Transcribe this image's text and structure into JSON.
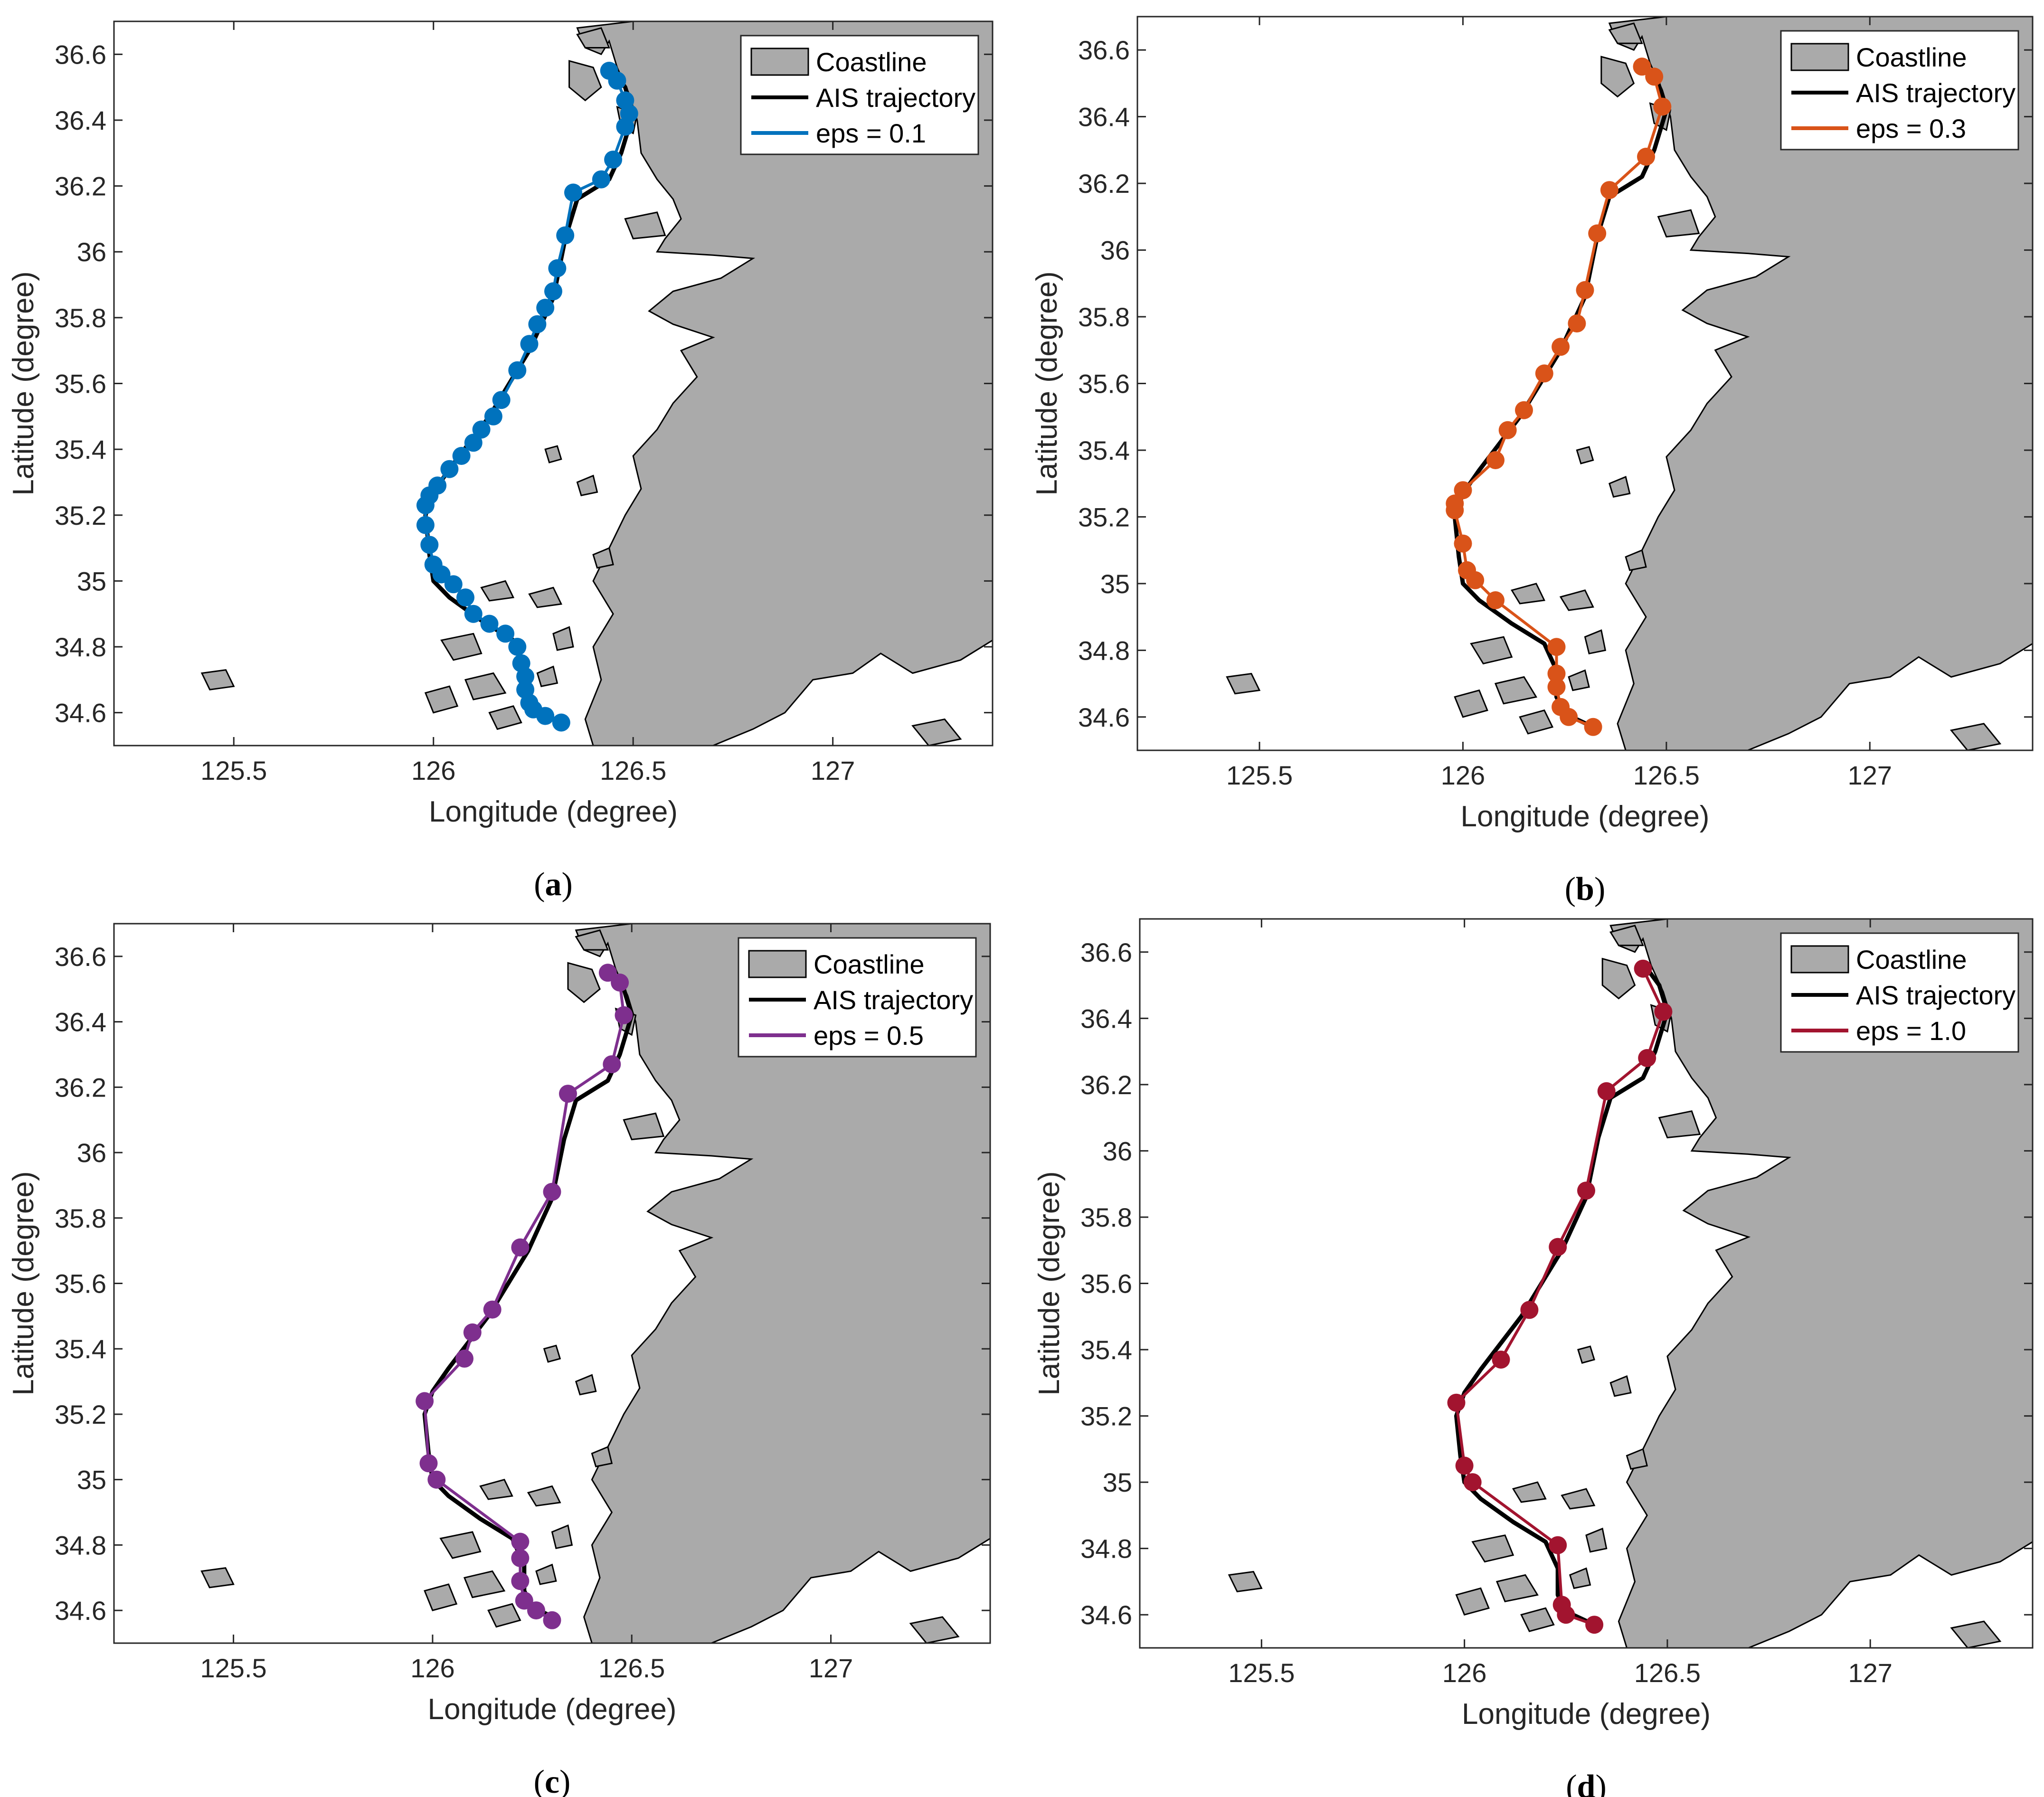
{
  "chart_data": [
    {
      "type": "line",
      "panel_label": "a",
      "xlabel": "Longitude (degree)",
      "ylabel": "Latitude (degree)",
      "xlim": [
        125.2,
        127.4
      ],
      "ylim": [
        34.5,
        36.7
      ],
      "xticks": [
        "125.5",
        "126",
        "126.5",
        "127"
      ],
      "yticks": [
        "34.6",
        "34.8",
        "35",
        "35.2",
        "35.4",
        "35.6",
        "35.8",
        "36",
        "36.2",
        "36.4",
        "36.6"
      ],
      "grid": false,
      "legend_position": "top-right",
      "legend": [
        "Coastline",
        "AIS trajectory",
        "eps = 0.1"
      ],
      "series": [
        {
          "name": "AIS trajectory",
          "color": "#000000",
          "x": [
            126.45,
            126.48,
            126.5,
            126.47,
            126.44,
            126.36,
            126.33,
            126.3,
            126.27,
            126.24,
            126.2,
            126.14,
            126.09,
            126.04,
            126.0,
            125.98,
            125.99,
            126.0,
            126.04,
            126.12,
            126.2,
            126.23,
            126.23,
            126.25,
            126.32
          ],
          "y": [
            36.55,
            36.5,
            36.42,
            36.3,
            36.22,
            36.16,
            36.04,
            35.86,
            35.78,
            35.7,
            35.62,
            35.5,
            35.42,
            35.34,
            35.27,
            35.2,
            35.08,
            35.0,
            34.95,
            34.88,
            34.82,
            34.74,
            34.66,
            34.61,
            34.57
          ]
        },
        {
          "name": "eps = 0.1",
          "color": "#0072BD",
          "x": [
            126.44,
            126.46,
            126.48,
            126.49,
            126.48,
            126.45,
            126.42,
            126.35,
            126.33,
            126.31,
            126.3,
            126.28,
            126.26,
            126.24,
            126.21,
            126.17,
            126.15,
            126.12,
            126.1,
            126.07,
            126.04,
            126.01,
            125.99,
            125.98,
            125.98,
            125.99,
            126.0,
            126.02,
            126.05,
            126.08,
            126.1,
            126.14,
            126.18,
            126.21,
            126.22,
            126.23,
            126.23,
            126.24,
            126.25,
            126.28,
            126.32
          ],
          "y": [
            36.55,
            36.52,
            36.46,
            36.42,
            36.38,
            36.28,
            36.22,
            36.18,
            36.05,
            35.95,
            35.88,
            35.83,
            35.78,
            35.72,
            35.64,
            35.55,
            35.5,
            35.46,
            35.42,
            35.38,
            35.34,
            35.29,
            35.26,
            35.23,
            35.17,
            35.11,
            35.05,
            35.02,
            34.99,
            34.95,
            34.9,
            34.87,
            34.84,
            34.8,
            34.75,
            34.71,
            34.67,
            34.63,
            34.61,
            34.59,
            34.57
          ]
        }
      ]
    },
    {
      "type": "line",
      "panel_label": "b",
      "xlabel": "Longitude (degree)",
      "ylabel": "Latitude (degree)",
      "xlim": [
        125.2,
        127.4
      ],
      "ylim": [
        34.5,
        36.7
      ],
      "xticks": [
        "125.5",
        "126",
        "126.5",
        "127"
      ],
      "yticks": [
        "34.6",
        "34.8",
        "35",
        "35.2",
        "35.4",
        "35.6",
        "35.8",
        "36",
        "36.2",
        "36.4",
        "36.6"
      ],
      "grid": false,
      "legend_position": "top-right",
      "legend": [
        "Coastline",
        "AIS trajectory",
        "eps = 0.3"
      ],
      "series": [
        {
          "name": "AIS trajectory",
          "color": "#000000",
          "x": [
            126.45,
            126.48,
            126.5,
            126.47,
            126.44,
            126.36,
            126.33,
            126.3,
            126.27,
            126.24,
            126.2,
            126.14,
            126.09,
            126.04,
            126.0,
            125.98,
            125.99,
            126.0,
            126.04,
            126.12,
            126.2,
            126.23,
            126.23,
            126.25,
            126.32
          ],
          "y": [
            36.55,
            36.5,
            36.42,
            36.3,
            36.22,
            36.16,
            36.04,
            35.86,
            35.78,
            35.7,
            35.62,
            35.5,
            35.42,
            35.34,
            35.27,
            35.2,
            35.08,
            35.0,
            34.95,
            34.88,
            34.82,
            34.74,
            34.66,
            34.61,
            34.57
          ]
        },
        {
          "name": "eps = 0.3",
          "color": "#D95319",
          "x": [
            126.44,
            126.47,
            126.49,
            126.45,
            126.36,
            126.33,
            126.3,
            126.28,
            126.24,
            126.2,
            126.15,
            126.11,
            126.08,
            126.0,
            125.98,
            125.98,
            126.0,
            126.01,
            126.03,
            126.08,
            126.23,
            126.23,
            126.23,
            126.24,
            126.26,
            126.32
          ],
          "y": [
            36.55,
            36.52,
            36.43,
            36.28,
            36.18,
            36.05,
            35.88,
            35.78,
            35.71,
            35.63,
            35.52,
            35.46,
            35.37,
            35.28,
            35.24,
            35.22,
            35.12,
            35.04,
            35.01,
            34.95,
            34.81,
            34.73,
            34.69,
            34.63,
            34.6,
            34.57
          ]
        }
      ]
    },
    {
      "type": "line",
      "panel_label": "c",
      "xlabel": "Longitude (degree)",
      "ylabel": "Latitude (degree)",
      "xlim": [
        125.2,
        127.4
      ],
      "ylim": [
        34.5,
        36.7
      ],
      "xticks": [
        "125.5",
        "126",
        "126.5",
        "127"
      ],
      "yticks": [
        "34.6",
        "34.8",
        "35",
        "35.2",
        "35.4",
        "35.6",
        "35.8",
        "36",
        "36.2",
        "36.4",
        "36.6"
      ],
      "grid": false,
      "legend_position": "top-right",
      "legend": [
        "Coastline",
        "AIS trajectory",
        "eps = 0.5"
      ],
      "series": [
        {
          "name": "AIS trajectory",
          "color": "#000000",
          "x": [
            126.45,
            126.48,
            126.5,
            126.47,
            126.44,
            126.36,
            126.33,
            126.3,
            126.27,
            126.24,
            126.2,
            126.14,
            126.09,
            126.04,
            126.0,
            125.98,
            125.99,
            126.0,
            126.04,
            126.12,
            126.2,
            126.23,
            126.23,
            126.25,
            126.32
          ],
          "y": [
            36.55,
            36.5,
            36.42,
            36.3,
            36.22,
            36.16,
            36.04,
            35.86,
            35.78,
            35.7,
            35.62,
            35.5,
            35.42,
            35.34,
            35.27,
            35.2,
            35.08,
            35.0,
            34.95,
            34.88,
            34.82,
            34.74,
            34.66,
            34.61,
            34.57
          ]
        },
        {
          "name": "eps = 0.5",
          "color": "#7E2F8E",
          "x": [
            126.44,
            126.47,
            126.48,
            126.45,
            126.34,
            126.3,
            126.22,
            126.15,
            126.1,
            126.08,
            125.98,
            125.99,
            126.01,
            126.22,
            126.22,
            126.22,
            126.23,
            126.26,
            126.3
          ],
          "y": [
            36.55,
            36.52,
            36.42,
            36.27,
            36.18,
            35.88,
            35.71,
            35.52,
            35.45,
            35.37,
            35.24,
            35.05,
            35.0,
            34.81,
            34.76,
            34.69,
            34.63,
            34.6,
            34.57
          ]
        }
      ]
    },
    {
      "type": "line",
      "panel_label": "d",
      "xlabel": "Longitude (degree)",
      "ylabel": "Latitude (degree)",
      "xlim": [
        125.2,
        127.4
      ],
      "ylim": [
        34.5,
        36.7
      ],
      "xticks": [
        "125.5",
        "126",
        "126.5",
        "127"
      ],
      "yticks": [
        "34.6",
        "34.8",
        "35",
        "35.2",
        "35.4",
        "35.6",
        "35.8",
        "36",
        "36.2",
        "36.4",
        "36.6"
      ],
      "grid": false,
      "legend_position": "top-right",
      "legend": [
        "Coastline",
        "AIS trajectory",
        "eps = 1.0"
      ],
      "series": [
        {
          "name": "AIS trajectory",
          "color": "#000000",
          "x": [
            126.45,
            126.48,
            126.5,
            126.47,
            126.44,
            126.36,
            126.33,
            126.3,
            126.27,
            126.24,
            126.2,
            126.14,
            126.09,
            126.04,
            126.0,
            125.98,
            125.99,
            126.0,
            126.04,
            126.12,
            126.2,
            126.23,
            126.23,
            126.25,
            126.32
          ],
          "y": [
            36.55,
            36.5,
            36.42,
            36.3,
            36.22,
            36.16,
            36.04,
            35.86,
            35.78,
            35.7,
            35.62,
            35.5,
            35.42,
            35.34,
            35.27,
            35.2,
            35.08,
            35.0,
            34.95,
            34.88,
            34.82,
            34.74,
            34.66,
            34.61,
            34.57
          ]
        },
        {
          "name": "eps = 1.0",
          "color": "#A2142F",
          "x": [
            126.44,
            126.49,
            126.45,
            126.35,
            126.3,
            126.23,
            126.16,
            126.09,
            125.98,
            126.0,
            126.02,
            126.23,
            126.24,
            126.25,
            126.32
          ],
          "y": [
            36.55,
            36.42,
            36.28,
            36.18,
            35.88,
            35.71,
            35.52,
            35.37,
            35.24,
            35.05,
            35.0,
            34.81,
            34.63,
            34.6,
            34.57
          ]
        }
      ]
    }
  ],
  "legend_colors": {
    "coastline_fill": "#aaaaaa",
    "coastline_edge": "#000000"
  },
  "panels_text": {
    "a": {
      "caption_letter": "a",
      "xlabel": "Longitude (degree)",
      "ylabel": "Latitude (degree)",
      "leg1": "Coastline",
      "leg2": "AIS trajectory",
      "leg3": "eps = 0.1"
    },
    "b": {
      "caption_letter": "b",
      "xlabel": "Longitude (degree)",
      "ylabel": "Latitude (degree)",
      "leg1": "Coastline",
      "leg2": "AIS trajectory",
      "leg3": "eps = 0.3"
    },
    "c": {
      "caption_letter": "c",
      "xlabel": "Longitude (degree)",
      "ylabel": "Latitude (degree)",
      "leg1": "Coastline",
      "leg2": "AIS trajectory",
      "leg3": "eps = 0.5"
    },
    "d": {
      "caption_letter": "d",
      "xlabel": "Longitude (degree)",
      "ylabel": "Latitude (degree)",
      "leg1": "Coastline",
      "leg2": "AIS trajectory",
      "leg3": "eps = 1.0"
    }
  }
}
